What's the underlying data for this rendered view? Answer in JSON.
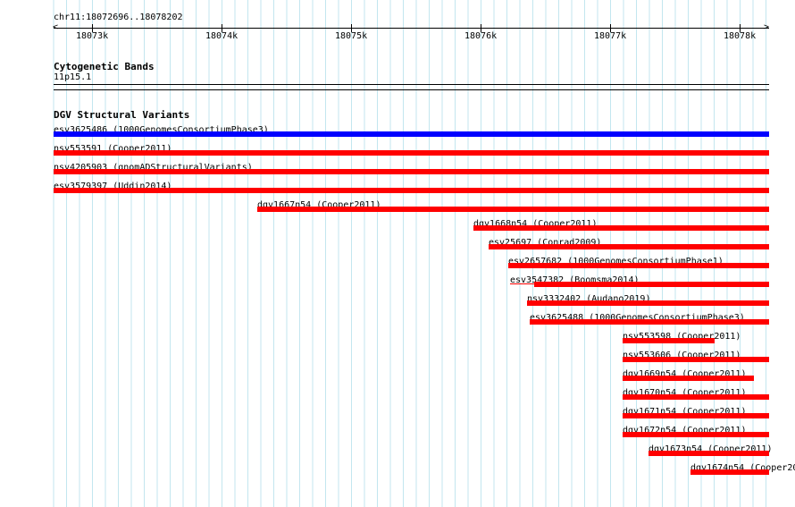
{
  "ruler": {
    "location": "chr11:18072696..18078202",
    "ticks": [
      "18073k",
      "18074k",
      "18075k",
      "18076k",
      "18077k",
      "18078k"
    ]
  },
  "cytoband": {
    "title": "Cytogenetic Bands",
    "band": "11p15.1"
  },
  "dgv": {
    "title": "DGV Structural Variants",
    "colors": {
      "loss": "#ff0000",
      "gain": "#0000ff"
    },
    "features": [
      {
        "label": "esv3625486 (1000GenomesConsortiumPhase3)",
        "type": "gain"
      },
      {
        "label": "nsv553591 (Cooper2011)",
        "type": "loss"
      },
      {
        "label": "nsv4205903 (gnomADStructuralVariants)",
        "type": "loss"
      },
      {
        "label": "esv3579397 (Uddin2014)",
        "type": "loss"
      },
      {
        "label": "dgv1667n54 (Cooper2011)",
        "type": "loss"
      },
      {
        "label": "dgv1668n54 (Cooper2011)",
        "type": "loss"
      },
      {
        "label": "esv25697 (Conrad2009)",
        "type": "loss"
      },
      {
        "label": "esv2657682 (1000GenomesConsortiumPhase1)",
        "type": "loss"
      },
      {
        "label": "esv3547382 (Boomsma2014)",
        "type": "loss"
      },
      {
        "label": "nsv3332402 (Audano2019)",
        "type": "loss"
      },
      {
        "label": "esv3625488 (1000GenomesConsortiumPhase3)",
        "type": "loss"
      },
      {
        "label": "nsv553598 (Cooper2011)",
        "type": "loss"
      },
      {
        "label": "nsv553606 (Cooper2011)",
        "type": "loss"
      },
      {
        "label": "dgv1669n54 (Cooper2011)",
        "type": "loss"
      },
      {
        "label": "dgv1670n54 (Cooper2011)",
        "type": "loss"
      },
      {
        "label": "dgv1671n54 (Cooper2011)",
        "type": "loss"
      },
      {
        "label": "dgv1672n54 (Cooper2011)",
        "type": "loss"
      },
      {
        "label": "dgv1673n54 (Cooper2011)",
        "type": "loss"
      },
      {
        "label": "dgv1674n54 (Cooper20",
        "type": "loss"
      }
    ]
  }
}
